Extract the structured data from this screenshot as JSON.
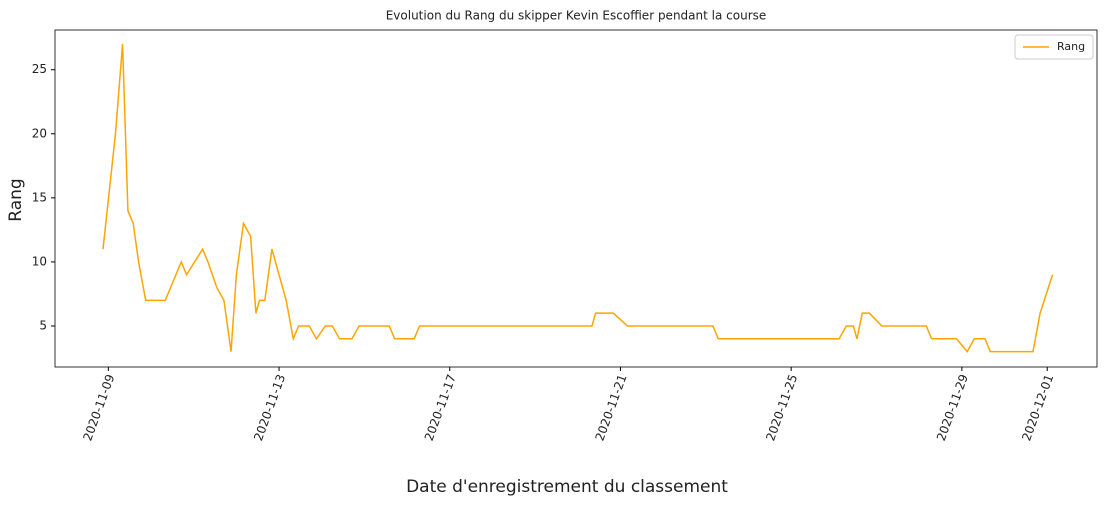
{
  "chart_data": {
    "type": "line",
    "title": "Evolution du Rang du skipper Kevin Escoffier pendant la course",
    "x_label": "Date d'enregistrement du classement",
    "y_label": "Rang",
    "x": [
      "2020-11-08T21:00",
      "2020-11-09T04:00",
      "2020-11-09T08:00",
      "2020-11-09T11:00",
      "2020-11-09T14:00",
      "2020-11-09T17:00",
      "2020-11-09T21:00",
      "2020-11-10T01:00",
      "2020-11-10T08:00",
      "2020-11-10T17:00",
      "2020-11-10T20:00",
      "2020-11-11T05:00",
      "2020-11-11T08:00",
      "2020-11-11T13:00",
      "2020-11-11T17:00",
      "2020-11-11T21:00",
      "2020-11-12T00:00",
      "2020-11-12T04:00",
      "2020-11-12T08:00",
      "2020-11-12T11:00",
      "2020-11-12T13:00",
      "2020-11-12T16:00",
      "2020-11-12T20:00",
      "2020-11-13T04:00",
      "2020-11-13T08:00",
      "2020-11-13T11:00",
      "2020-11-13T17:00",
      "2020-11-13T21:00",
      "2020-11-14T02:00",
      "2020-11-14T06:00",
      "2020-11-14T10:00",
      "2020-11-14T17:00",
      "2020-11-14T21:00",
      "2020-11-15T14:00",
      "2020-11-15T17:00",
      "2020-11-16T04:00",
      "2020-11-16T07:00",
      "2020-11-20T08:00",
      "2020-11-20T10:00",
      "2020-11-20T20:00",
      "2020-11-21T04:00",
      "2020-11-23T04:00",
      "2020-11-23T07:00",
      "2020-11-26T03:00",
      "2020-11-26T07:00",
      "2020-11-26T11:00",
      "2020-11-26T13:00",
      "2020-11-26T16:00",
      "2020-11-26T20:00",
      "2020-11-27T03:00",
      "2020-11-28T04:00",
      "2020-11-28T07:00",
      "2020-11-28T21:00",
      "2020-11-29T03:00",
      "2020-11-29T07:00",
      "2020-11-29T13:00",
      "2020-11-29T16:00",
      "2020-11-30T16:00",
      "2020-11-30T20:00",
      "2020-12-01T03:00"
    ],
    "series": [
      {
        "name": "Rang",
        "color": "#ffa500",
        "values": [
          11,
          20,
          27,
          14,
          13,
          10,
          7,
          7,
          7,
          10,
          9,
          11,
          10,
          8,
          7,
          3,
          9,
          13,
          12,
          6,
          7,
          7,
          11,
          7,
          4,
          5,
          5,
          4,
          5,
          5,
          4,
          4,
          5,
          5,
          4,
          4,
          5,
          5,
          6,
          6,
          5,
          5,
          4,
          4,
          5,
          5,
          4,
          6,
          6,
          5,
          5,
          4,
          4,
          3,
          4,
          4,
          3,
          3,
          6,
          9
        ]
      }
    ],
    "xlim": [
      "2020-11-07T18:00",
      "2020-12-02T04:00"
    ],
    "xticks": [
      "2020-11-09",
      "2020-11-13",
      "2020-11-17",
      "2020-11-21",
      "2020-11-25",
      "2020-11-29",
      "2020-12-01"
    ],
    "ylim": [
      1.8,
      28.1
    ],
    "yticks": [
      5,
      10,
      15,
      20,
      25
    ],
    "legend": "upper right"
  }
}
